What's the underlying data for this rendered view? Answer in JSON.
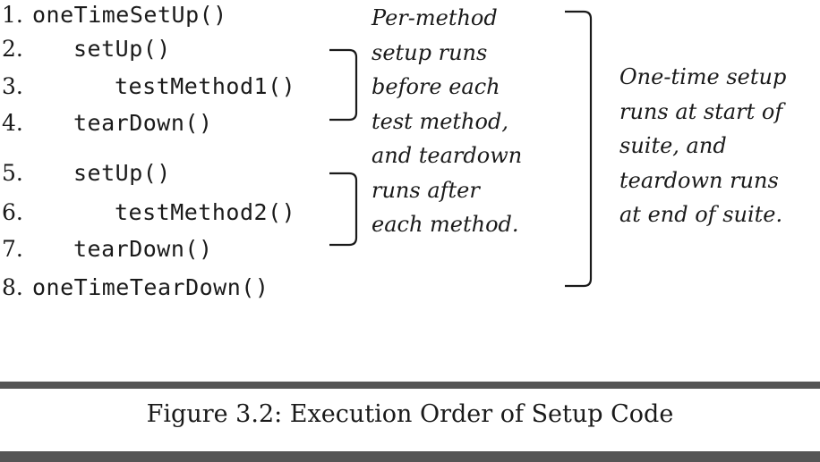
{
  "code_lines": [
    {
      "number": "1.",
      "code": "oneTimeSetUp()"
    },
    {
      "number": "2.",
      "code": "setUp()"
    },
    {
      "number": "3.",
      "code": "testMethod1()"
    },
    {
      "number": "4.",
      "code": "tearDown()"
    },
    {
      "number": "5.",
      "code": "setUp()"
    },
    {
      "number": "6.",
      "code": "testMethod2()"
    },
    {
      "number": "7.",
      "code": "tearDown()"
    },
    {
      "number": "8.",
      "code": "oneTimeTearDown()"
    }
  ],
  "per_method_note": [
    "Per-method",
    "setup runs",
    "before each",
    "test method,",
    "and teardown",
    "runs after",
    "each method."
  ],
  "one_time_note": [
    "One-time setup",
    "runs at start of",
    "suite, and",
    "teardown runs",
    "at end of suite."
  ],
  "caption": "Figure 3.2: Execution Order of Setup Code",
  "colors": {
    "text": "#1a1a1a",
    "rule": "#555555",
    "background": "#ffffff"
  }
}
